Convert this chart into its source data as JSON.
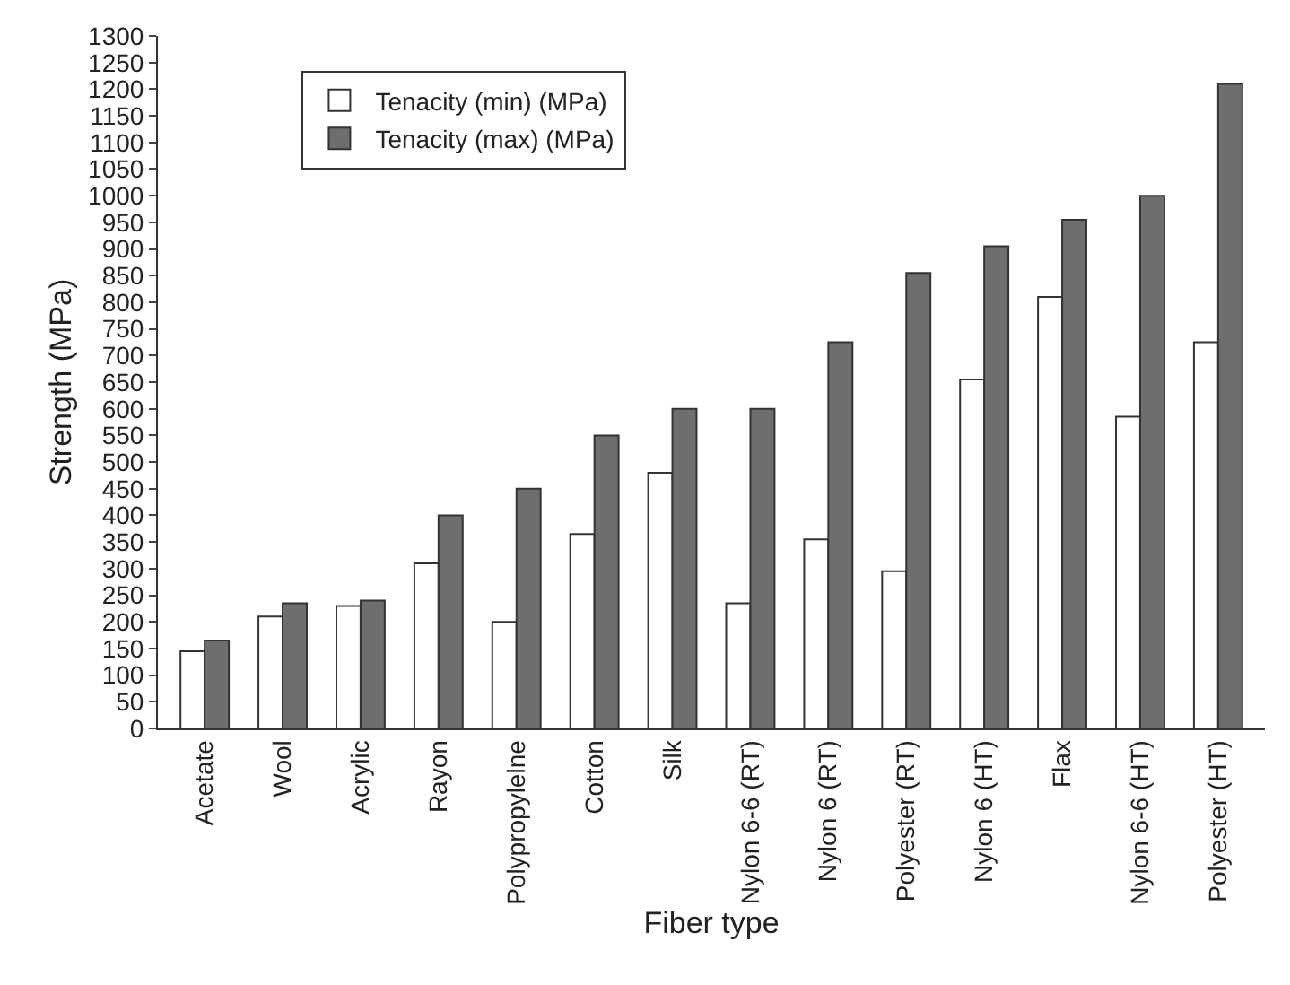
{
  "chart_data": {
    "type": "bar",
    "xlabel": "Fiber type",
    "ylabel": "Strength (MPa)",
    "categories": [
      "Acetate",
      "Wool",
      "Acrylic",
      "Rayon",
      "Polypropylelne",
      "Cotton",
      "Silk",
      "Nylon 6-6 (RT)",
      "Nylon 6 (RT)",
      "Polyester (RT)",
      "Nylon 6 (HT)",
      "Flax",
      "Nylon 6-6 (HT)",
      "Polyester (HT)"
    ],
    "series": [
      {
        "name": "Tenacity (min) (MPa)",
        "color": "#ffffff",
        "values": [
          145,
          210,
          230,
          310,
          200,
          365,
          480,
          235,
          355,
          295,
          655,
          810,
          585,
          725
        ]
      },
      {
        "name": "Tenacity (max) (MPa)",
        "color": "#6d6e70",
        "values": [
          165,
          235,
          240,
          400,
          450,
          550,
          600,
          600,
          725,
          855,
          905,
          955,
          1000,
          1210
        ]
      }
    ],
    "ylim": [
      0,
      1300
    ],
    "yticks": [
      0,
      50,
      100,
      150,
      200,
      250,
      300,
      350,
      400,
      450,
      500,
      550,
      600,
      650,
      700,
      750,
      800,
      850,
      900,
      950,
      1000,
      1050,
      1100,
      1150,
      1200,
      1250,
      1300
    ],
    "legend": "top left"
  }
}
